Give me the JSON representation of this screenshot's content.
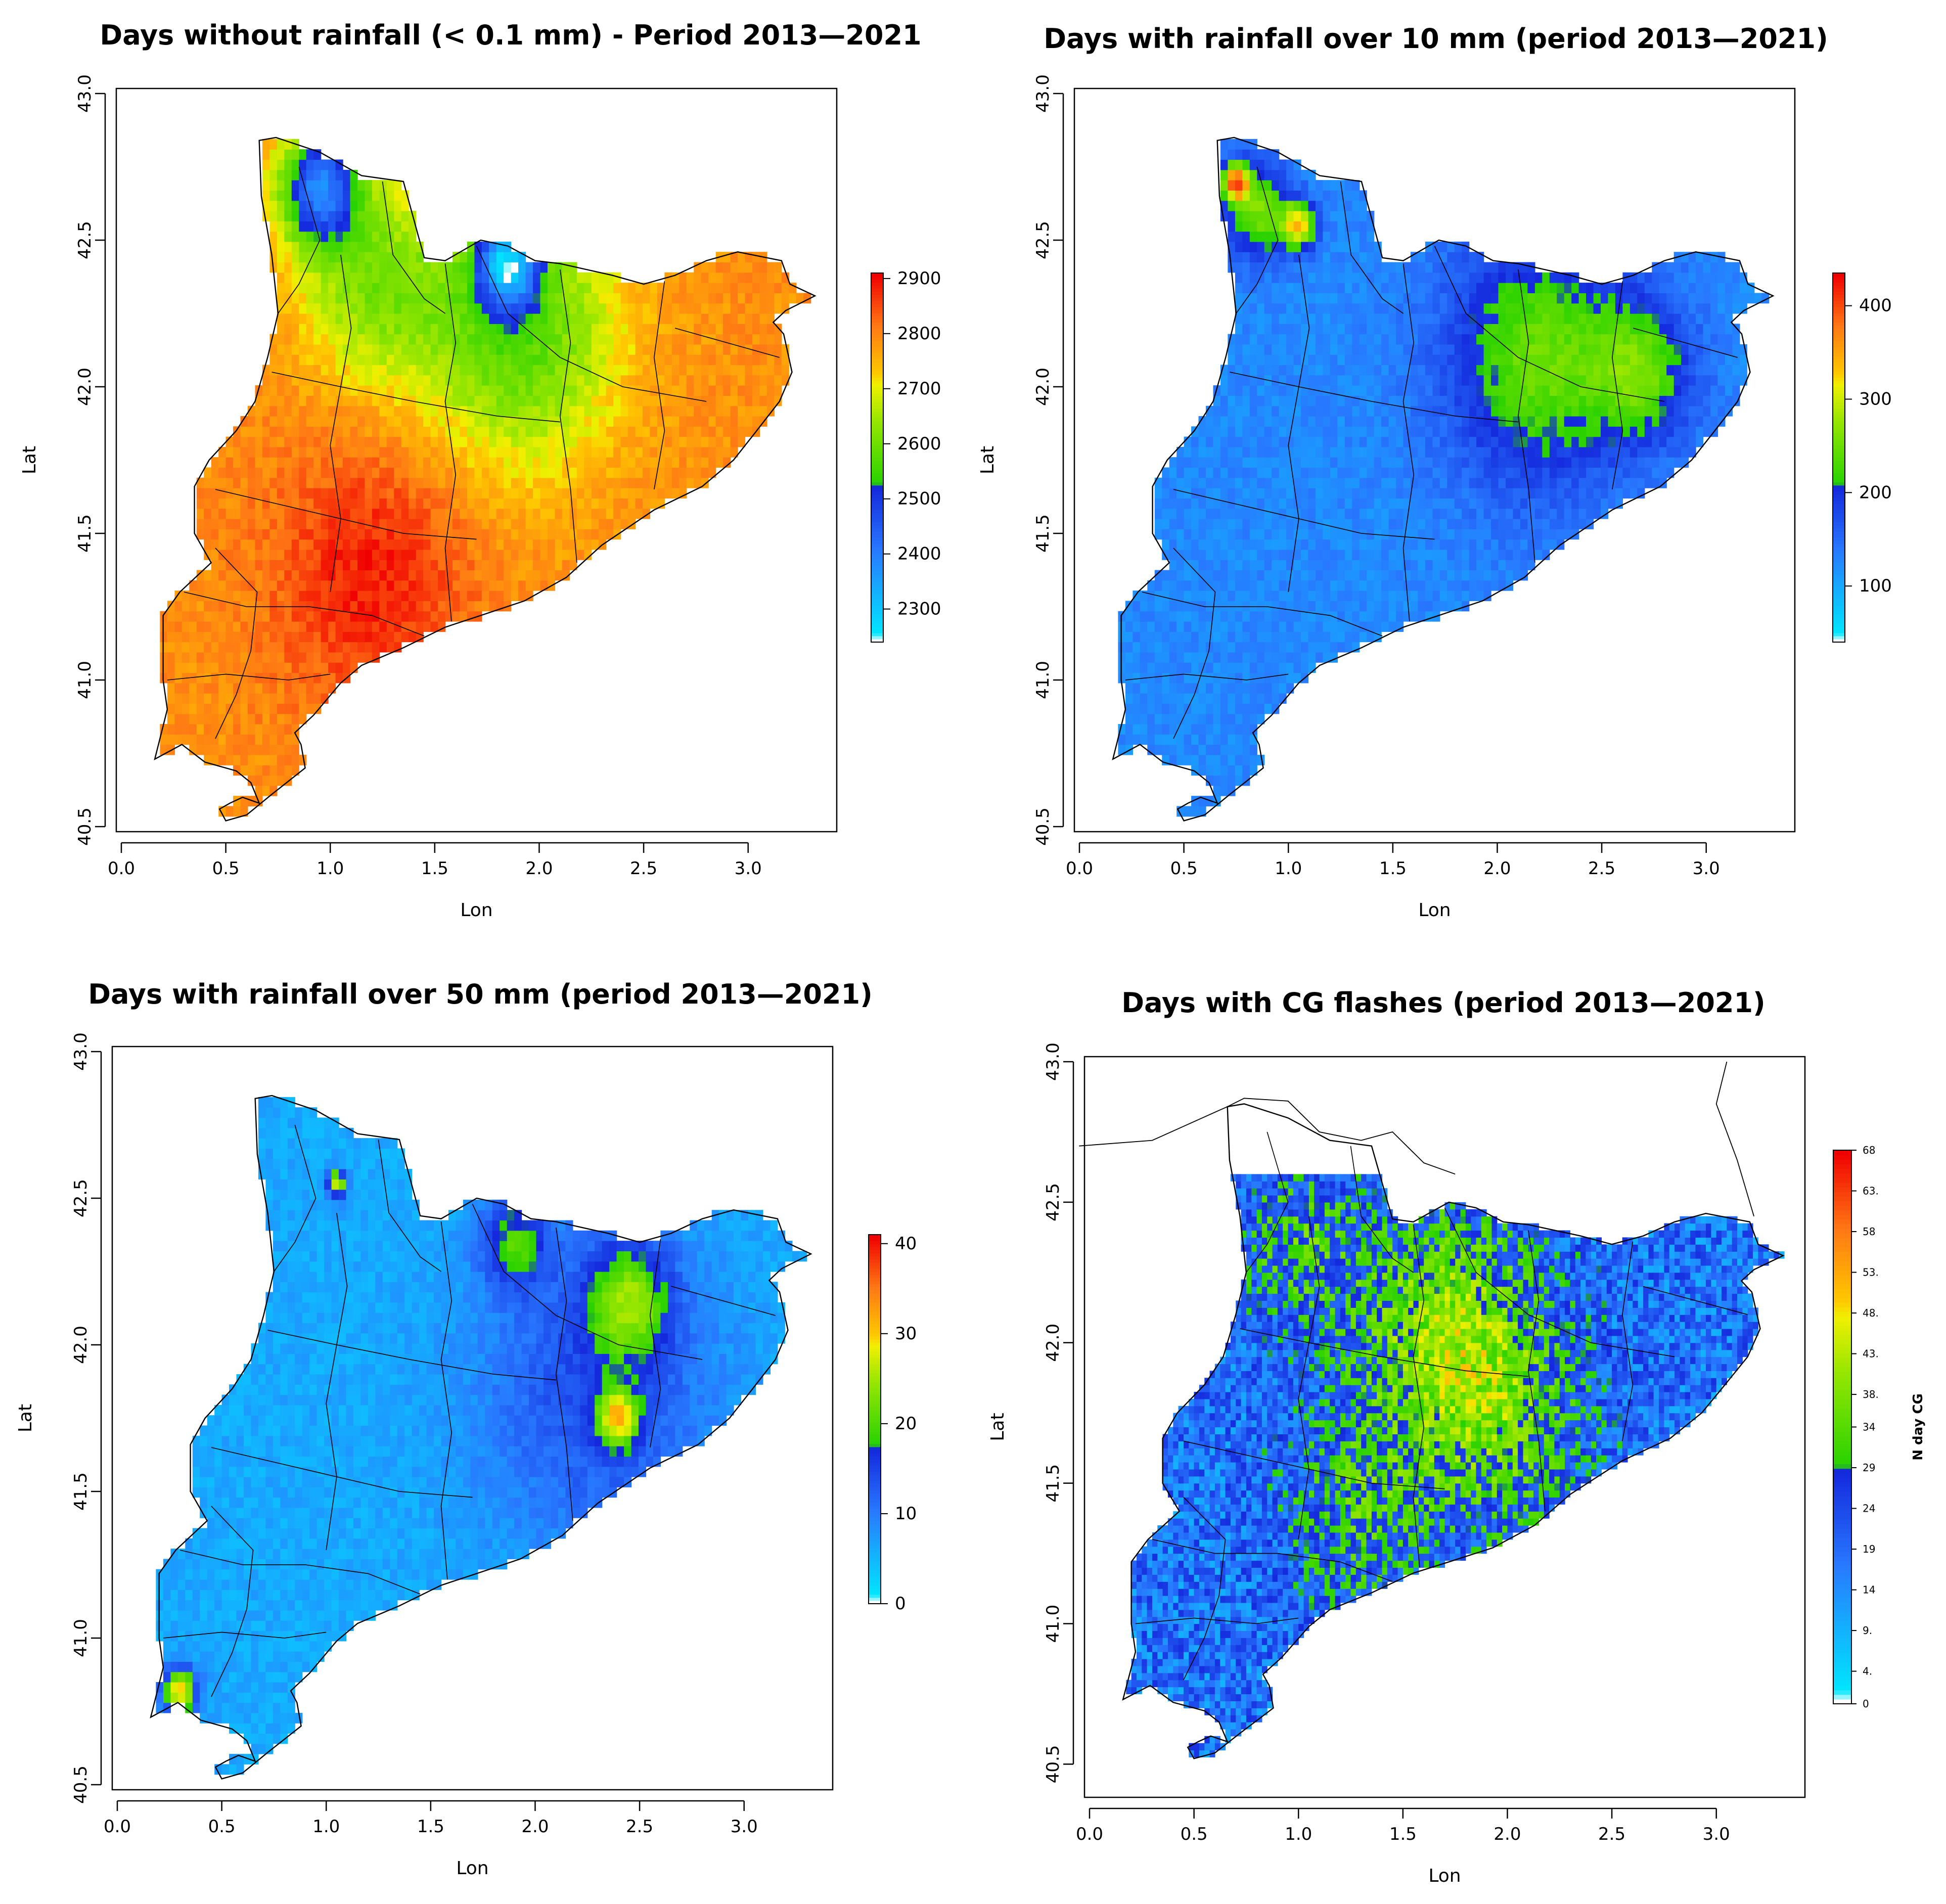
{
  "chart_data": [
    {
      "type": "heatmap",
      "title": "Days without rainfall (< 0.1 mm) - Period 2013—2021",
      "xlabel": "Lon",
      "ylabel": "Lat",
      "xlim": [
        0.0,
        3.4
      ],
      "ylim": [
        40.5,
        43.0
      ],
      "xticks": [
        "0.0",
        "0.5",
        "1.0",
        "1.5",
        "2.0",
        "2.5",
        "3.0"
      ],
      "yticks": [
        "40.5",
        "41.0",
        "41.5",
        "42.0",
        "42.5",
        "43.0"
      ],
      "colorbar": {
        "range": [
          2240,
          2910
        ],
        "ticks": [
          "2300",
          "2400",
          "2500",
          "2600",
          "2700",
          "2800",
          "2900"
        ],
        "unit": ""
      },
      "field": {
        "base": 2790,
        "hotspots": [
          {
            "lon": 1.2,
            "lat": 41.35,
            "value": 2890,
            "radius": 0.6
          },
          {
            "lon": 1.9,
            "lat": 42.2,
            "value": 2570,
            "radius": 0.6
          },
          {
            "lon": 1.2,
            "lat": 42.35,
            "value": 2630,
            "radius": 0.45
          },
          {
            "lon": 0.95,
            "lat": 42.68,
            "value": 2420,
            "radius": 0.25
          },
          {
            "lon": 1.85,
            "lat": 42.42,
            "value": 2420,
            "radius": 0.18
          }
        ]
      }
    },
    {
      "type": "heatmap",
      "title": "Days with rainfall over 10 mm (period 2013—2021)",
      "xlabel": "Lon",
      "ylabel": "Lat",
      "xlim": [
        0.0,
        3.4
      ],
      "ylim": [
        40.5,
        43.0
      ],
      "xticks": [
        "0.0",
        "0.5",
        "1.0",
        "1.5",
        "2.0",
        "2.5",
        "3.0"
      ],
      "yticks": [
        "40.5",
        "41.0",
        "41.5",
        "42.0",
        "42.5",
        "43.0"
      ],
      "colorbar": {
        "range": [
          40,
          435
        ],
        "ticks": [
          "100",
          "200",
          "300",
          "400"
        ],
        "unit": ""
      },
      "field": {
        "base": 125,
        "hotspots": [
          {
            "lon": 2.2,
            "lat": 42.1,
            "value": 250,
            "radius": 0.55
          },
          {
            "lon": 2.7,
            "lat": 42.05,
            "value": 230,
            "radius": 0.3
          },
          {
            "lon": 0.85,
            "lat": 42.6,
            "value": 260,
            "radius": 0.2
          },
          {
            "lon": 1.05,
            "lat": 42.55,
            "value": 330,
            "radius": 0.1
          },
          {
            "lon": 0.75,
            "lat": 42.7,
            "value": 360,
            "radius": 0.08
          }
        ]
      }
    },
    {
      "type": "heatmap",
      "title": "Days with rainfall over 50 mm (period 2013—2021)",
      "xlabel": "Lon",
      "ylabel": "Lat",
      "xlim": [
        0.0,
        3.4
      ],
      "ylim": [
        40.5,
        43.0
      ],
      "xticks": [
        "0.0",
        "0.5",
        "1.0",
        "1.5",
        "2.0",
        "2.5",
        "3.0"
      ],
      "yticks": [
        "40.5",
        "41.0",
        "41.5",
        "42.0",
        "42.5",
        "43.0"
      ],
      "colorbar": {
        "range": [
          0,
          41
        ],
        "ticks": [
          "0",
          "10",
          "20",
          "30",
          "40"
        ],
        "unit": ""
      },
      "field": {
        "base": 6,
        "hotspots": [
          {
            "lon": 2.3,
            "lat": 41.85,
            "value": 14,
            "radius": 0.7
          },
          {
            "lon": 2.45,
            "lat": 42.15,
            "value": 20,
            "radius": 0.25
          },
          {
            "lon": 2.4,
            "lat": 41.75,
            "value": 25,
            "radius": 0.12
          },
          {
            "lon": 0.3,
            "lat": 40.82,
            "value": 30,
            "radius": 0.1
          },
          {
            "lon": 1.05,
            "lat": 42.55,
            "value": 28,
            "radius": 0.06
          },
          {
            "lon": 1.9,
            "lat": 42.35,
            "value": 18,
            "radius": 0.2
          }
        ]
      }
    },
    {
      "type": "heatmap",
      "title": "Days with CG flashes (period 2013—2021)",
      "xlabel": "Lon",
      "ylabel": "Lat",
      "xlim": [
        0.0,
        3.4
      ],
      "ylim": [
        40.4,
        43.0
      ],
      "xticks": [
        "0.0",
        "0.5",
        "1.0",
        "1.5",
        "2.0",
        "2.5",
        "3.0"
      ],
      "yticks": [
        "40.5",
        "41.0",
        "41.5",
        "42.0",
        "42.5",
        "43.0"
      ],
      "colorbar": {
        "range": [
          0,
          68
        ],
        "ticks": [
          "0",
          "4.",
          "9.",
          "14",
          "19",
          "24",
          "29",
          "34",
          "38.",
          "43.",
          "48.",
          "53.",
          "58",
          "63.",
          "68"
        ],
        "unit": "N day CG"
      },
      "field": {
        "base": 18,
        "hotspots": [
          {
            "lon": 1.7,
            "lat": 42.05,
            "value": 38,
            "radius": 0.55
          },
          {
            "lon": 1.3,
            "lat": 41.4,
            "value": 30,
            "radius": 0.45
          },
          {
            "lon": 2.0,
            "lat": 41.7,
            "value": 30,
            "radius": 0.5
          },
          {
            "lon": 1.0,
            "lat": 42.35,
            "value": 30,
            "radius": 0.35
          }
        ]
      }
    }
  ]
}
